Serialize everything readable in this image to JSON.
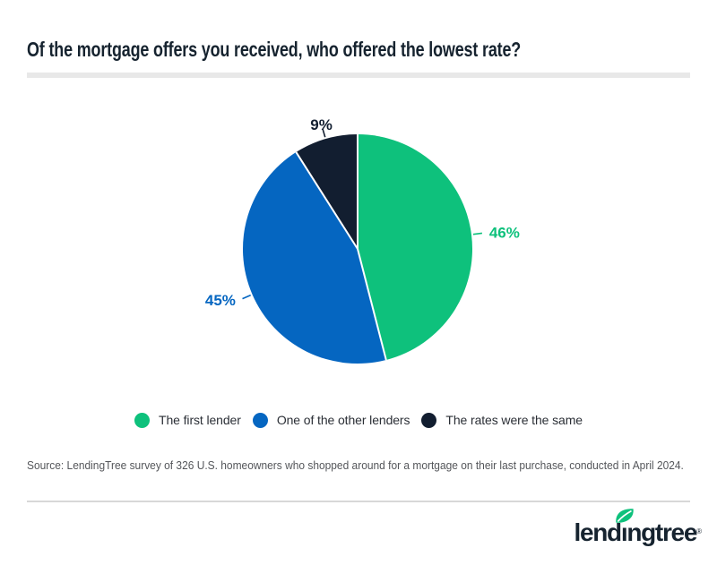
{
  "title": "Of the mortgage offers you received, who offered the lowest rate?",
  "chart_data": {
    "type": "pie",
    "title": "Of the mortgage offers you received, who offered the lowest rate?",
    "slices": [
      {
        "label": "The first lender",
        "value": 46,
        "color": "#0ec17c"
      },
      {
        "label": "One of the other lenders",
        "value": 45,
        "color": "#0566c1"
      },
      {
        "label": "The rates were the same",
        "value": 9,
        "color": "#121e30"
      }
    ],
    "value_suffix": "%",
    "start_angle_deg": 0,
    "direction": "clockwise",
    "legend_position": "bottom",
    "data_labels": [
      "46%",
      "45%",
      "9%"
    ]
  },
  "source_note": "Source: LendingTree survey of 326 U.S. homeowners who shopped around for a mortgage on their last purchase, conducted in April 2024.",
  "footer": {
    "brand": "lendingtree",
    "wordmark_parts": [
      "lend",
      "ı",
      "ngtree"
    ],
    "registered_mark": "®"
  },
  "colors": {
    "accent_green": "#0ec17c",
    "accent_blue": "#0566c1",
    "dark_navy": "#16232f",
    "legend_text": "#2b2f36",
    "source_text": "#54565a",
    "divider_thick": "#e8e8e8",
    "divider_thin": "#d8d8d8",
    "background": "#ffffff",
    "slice_border": "#ffffff"
  }
}
